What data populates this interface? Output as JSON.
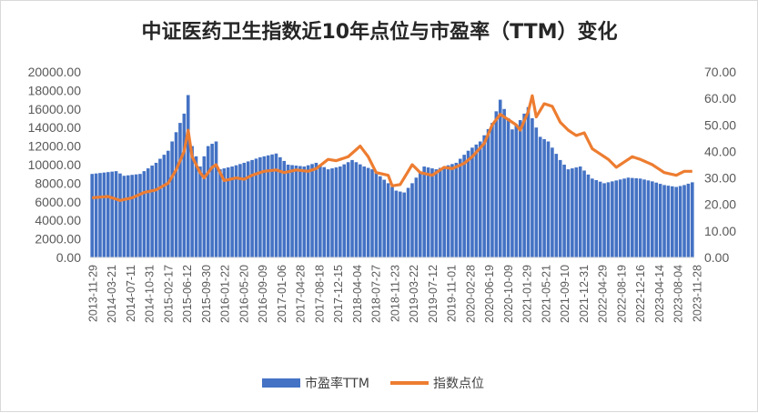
{
  "chart_data": {
    "type": "bar+line",
    "title": "中证医药卫生指数近10年点位与市盈率（TTM）变化",
    "x_tick_labels": [
      "2013-11-29",
      "2014-03-21",
      "2014-07-11",
      "2014-10-31",
      "2015-02-17",
      "2015-06-12",
      "2015-09-30",
      "2016-01-22",
      "2016-05-20",
      "2016-09-09",
      "2017-01-06",
      "2017-04-28",
      "2017-08-18",
      "2017-12-15",
      "2018-04-04",
      "2018-07-27",
      "2018-11-23",
      "2019-03-22",
      "2019-07-12",
      "2019-11-01",
      "2020-02-28",
      "2020-06-19",
      "2020-10-09",
      "2021-01-29",
      "2021-05-21",
      "2021-09-10",
      "2021-12-31",
      "2022-04-29",
      "2022-08-19",
      "2022-12-16",
      "2023-04-14",
      "2023-08-04",
      "2023-11-28"
    ],
    "y_left": {
      "min": 0,
      "max": 20000,
      "step": 2000,
      "tick_labels": [
        "0.00",
        "2000.00",
        "4000.00",
        "6000.00",
        "8000.00",
        "10000.00",
        "12000.00",
        "14000.00",
        "16000.00",
        "18000.00",
        "20000.00"
      ]
    },
    "y_right": {
      "min": 0,
      "max": 70,
      "step": 10,
      "tick_labels": [
        "0.00",
        "10.00",
        "20.00",
        "30.00",
        "40.00",
        "50.00",
        "60.00",
        "70.00"
      ]
    },
    "series": [
      {
        "name": "市盈率TTM",
        "type": "bar",
        "axis": "left",
        "color": "#4472c4",
        "anchors": [
          [
            0,
            9000
          ],
          [
            4,
            9200
          ],
          [
            6,
            9300
          ],
          [
            8,
            8800
          ],
          [
            12,
            9000
          ],
          [
            16,
            10200
          ],
          [
            19,
            11500
          ],
          [
            21,
            13500
          ],
          [
            23,
            15500
          ],
          [
            24,
            17500
          ],
          [
            25,
            12000
          ],
          [
            27,
            9800
          ],
          [
            29,
            12000
          ],
          [
            31,
            12500
          ],
          [
            32,
            9500
          ],
          [
            35,
            9800
          ],
          [
            38,
            10200
          ],
          [
            42,
            10800
          ],
          [
            46,
            11200
          ],
          [
            49,
            10000
          ],
          [
            53,
            9800
          ],
          [
            56,
            10200
          ],
          [
            59,
            9500
          ],
          [
            62,
            9800
          ],
          [
            65,
            10500
          ],
          [
            68,
            9800
          ],
          [
            70,
            9500
          ],
          [
            74,
            8000
          ],
          [
            76,
            7200
          ],
          [
            78,
            7000
          ],
          [
            80,
            8000
          ],
          [
            83,
            9800
          ],
          [
            86,
            9500
          ],
          [
            88,
            9800
          ],
          [
            91,
            10200
          ],
          [
            94,
            11500
          ],
          [
            97,
            12500
          ],
          [
            100,
            14500
          ],
          [
            102,
            17000
          ],
          [
            104,
            15000
          ],
          [
            105,
            13800
          ],
          [
            107,
            14800
          ],
          [
            109,
            16200
          ],
          [
            110,
            15000
          ],
          [
            112,
            13000
          ],
          [
            114,
            12500
          ],
          [
            117,
            10500
          ],
          [
            119,
            9500
          ],
          [
            122,
            9800
          ],
          [
            125,
            8500
          ],
          [
            128,
            8000
          ],
          [
            131,
            8300
          ],
          [
            134,
            8600
          ],
          [
            137,
            8500
          ],
          [
            140,
            8200
          ],
          [
            143,
            7800
          ],
          [
            146,
            7600
          ],
          [
            148,
            7800
          ],
          [
            150,
            8100
          ]
        ]
      },
      {
        "name": "指数点位",
        "type": "line",
        "axis": "right",
        "color": "#ed7d31",
        "anchors": [
          [
            0,
            22.5
          ],
          [
            4,
            23
          ],
          [
            7,
            21.5
          ],
          [
            10,
            22.5
          ],
          [
            13,
            24.5
          ],
          [
            16,
            25.5
          ],
          [
            19,
            28
          ],
          [
            21,
            33
          ],
          [
            23,
            40
          ],
          [
            24,
            48
          ],
          [
            25,
            38
          ],
          [
            27,
            32
          ],
          [
            28,
            30
          ],
          [
            30,
            34
          ],
          [
            31,
            35
          ],
          [
            33,
            29
          ],
          [
            36,
            30
          ],
          [
            38,
            29.5
          ],
          [
            40,
            31
          ],
          [
            43,
            32.5
          ],
          [
            46,
            33
          ],
          [
            48,
            32
          ],
          [
            51,
            33
          ],
          [
            54,
            32.5
          ],
          [
            56,
            33.5
          ],
          [
            59,
            37
          ],
          [
            61,
            36.5
          ],
          [
            64,
            38
          ],
          [
            67,
            42
          ],
          [
            69,
            38
          ],
          [
            71,
            32
          ],
          [
            74,
            31
          ],
          [
            75,
            27
          ],
          [
            77,
            27.5
          ],
          [
            80,
            35
          ],
          [
            82,
            32
          ],
          [
            85,
            31
          ],
          [
            88,
            34
          ],
          [
            90,
            33.5
          ],
          [
            93,
            35.5
          ],
          [
            95,
            38
          ],
          [
            98,
            43
          ],
          [
            100,
            50
          ],
          [
            102,
            54
          ],
          [
            104,
            52
          ],
          [
            106,
            50
          ],
          [
            107,
            48
          ],
          [
            109,
            55
          ],
          [
            110,
            61
          ],
          [
            111,
            53
          ],
          [
            113,
            58
          ],
          [
            115,
            57
          ],
          [
            117,
            51
          ],
          [
            119,
            48
          ],
          [
            121,
            46
          ],
          [
            123,
            47
          ],
          [
            125,
            41
          ],
          [
            127,
            39
          ],
          [
            129,
            37
          ],
          [
            131,
            34
          ],
          [
            133,
            36
          ],
          [
            135,
            38
          ],
          [
            137,
            37
          ],
          [
            140,
            35
          ],
          [
            143,
            32
          ],
          [
            146,
            31
          ],
          [
            148,
            32.5
          ],
          [
            150,
            32.5
          ]
        ]
      }
    ],
    "legend": {
      "position": "bottom",
      "entries": [
        "市盈率TTM",
        "指数点位"
      ]
    },
    "grid": false
  }
}
